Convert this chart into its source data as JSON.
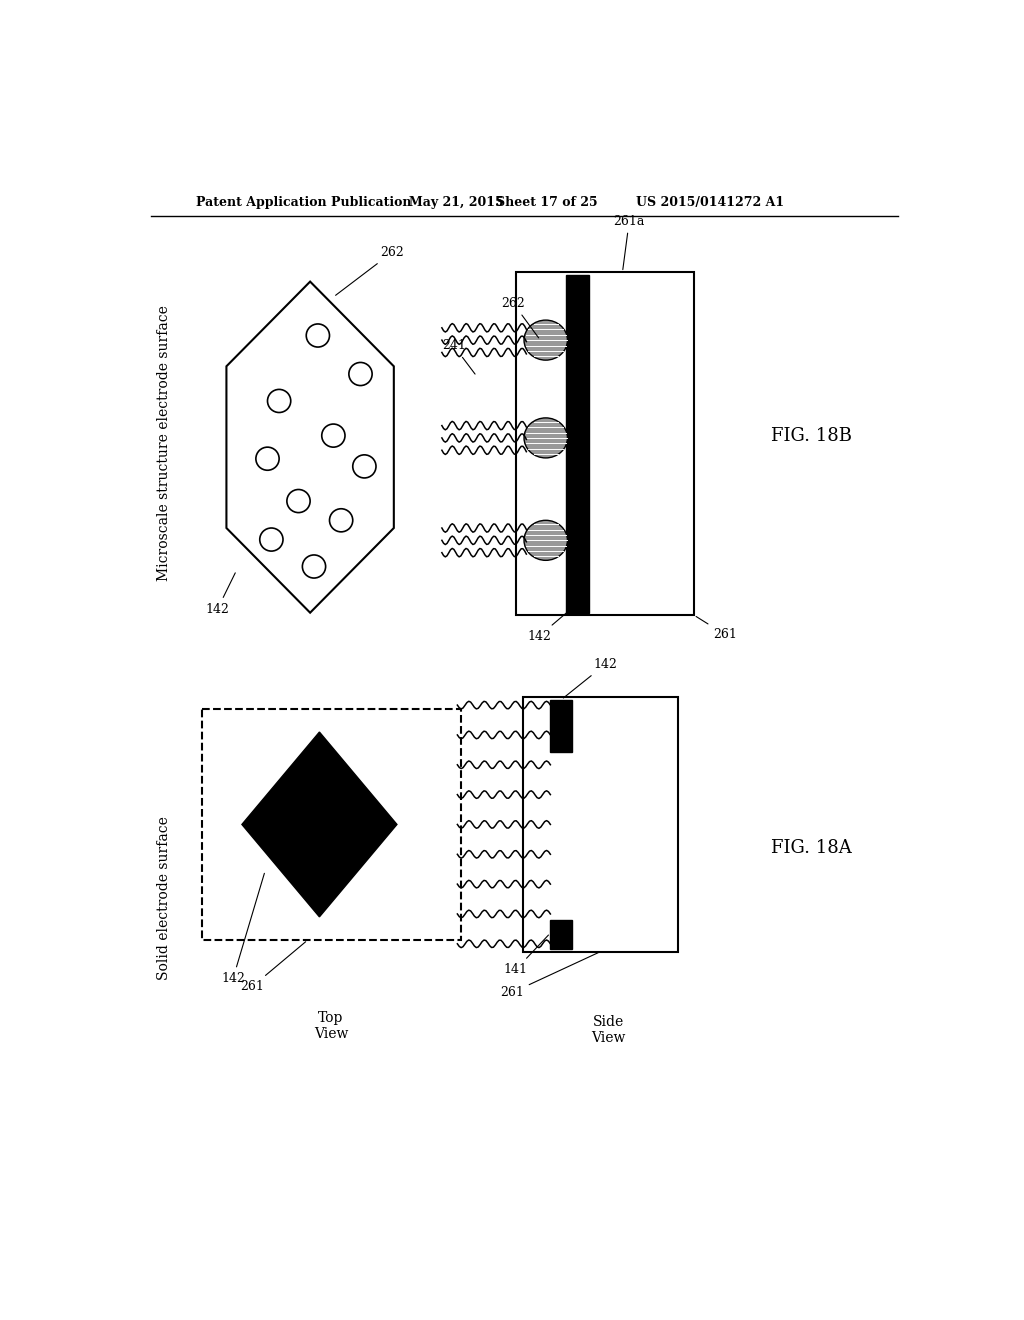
{
  "background_color": "#ffffff",
  "header_text": "Patent Application Publication",
  "header_date": "May 21, 2015",
  "header_sheet": "Sheet 17 of 25",
  "header_patent": "US 2015/0141272 A1",
  "fig18a_label": "FIG. 18A",
  "fig18b_label": "FIG. 18B",
  "label_solid": "Solid electrode surface",
  "label_micro": "Microscale structure electrode surface"
}
